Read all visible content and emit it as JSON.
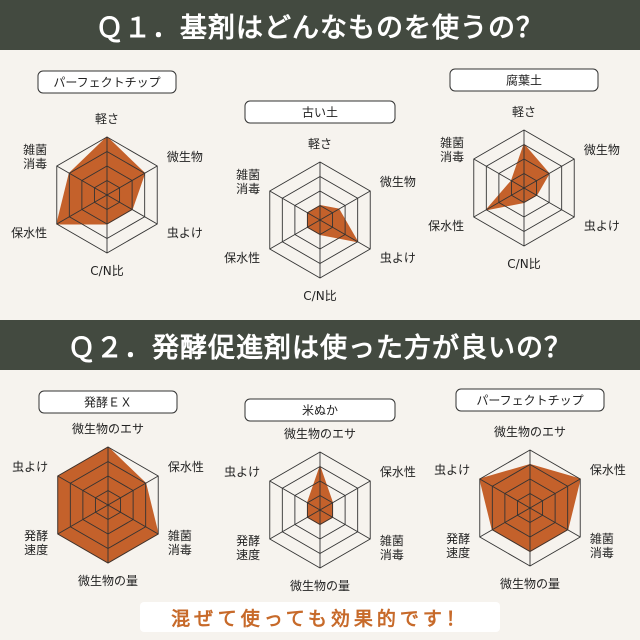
{
  "sections": [
    {
      "title": "Ｑ１．基剤はどんなものを使うの？"
    },
    {
      "title": "Ｑ２．発酵促進剤は使った方が良いの？"
    }
  ],
  "footer": "混ぜて使っても効果的です！",
  "colors": {
    "fill": "#c4612b",
    "banner": "#434a40",
    "grid": "#333333",
    "footer_text": "#c76a2a"
  },
  "chart_data": [
    {
      "type": "radar",
      "title": "パーフェクトチップ",
      "max": 4,
      "axes": [
        "軽さ",
        "微生物",
        "虫よけ",
        "C/N比",
        "保水性",
        "雑菌\n消毒"
      ],
      "values": [
        4,
        3,
        2,
        2,
        4,
        3
      ]
    },
    {
      "type": "radar",
      "title": "古い土",
      "max": 4,
      "axes": [
        "軽さ",
        "微生物",
        "虫よけ",
        "C/N比",
        "保水性",
        "雑菌\n消毒"
      ],
      "values": [
        1,
        1.5,
        3,
        1,
        1,
        1
      ]
    },
    {
      "type": "radar",
      "title": "腐葉土",
      "max": 4,
      "axes": [
        "軽さ",
        "微生物",
        "虫よけ",
        "C/N比",
        "保水性",
        "雑菌\n消毒"
      ],
      "values": [
        3,
        2,
        1,
        1,
        3,
        1
      ]
    },
    {
      "type": "radar",
      "title": "発酵ＥＸ",
      "max": 4,
      "axes": [
        "微生物のエサ",
        "保水性",
        "雑菌\n消毒",
        "微生物の量",
        "発酵\n速度",
        "虫よけ"
      ],
      "values": [
        4,
        3,
        4,
        4,
        4,
        4
      ]
    },
    {
      "type": "radar",
      "title": "米ぬか",
      "max": 4,
      "axes": [
        "微生物のエサ",
        "保水性",
        "雑菌\n消毒",
        "微生物の量",
        "発酵\n速度",
        "虫よけ"
      ],
      "values": [
        3,
        1,
        1,
        1,
        1,
        1
      ]
    },
    {
      "type": "radar",
      "title": "パーフェクトチップ",
      "max": 4,
      "axes": [
        "微生物のエサ",
        "保水性",
        "雑菌\n消毒",
        "微生物の量",
        "発酵\n速度",
        "虫よけ"
      ],
      "values": [
        3,
        4,
        3,
        3,
        3,
        4
      ]
    }
  ]
}
